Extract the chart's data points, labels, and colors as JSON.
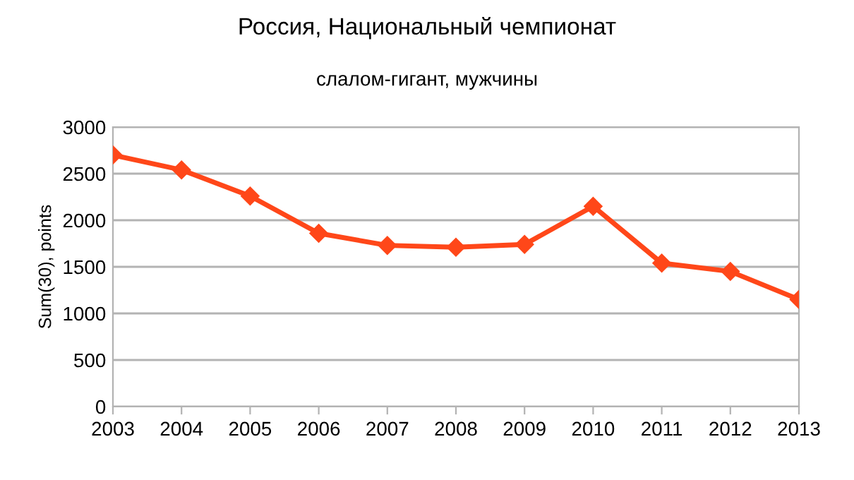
{
  "chart_data": {
    "type": "line",
    "title": "Россия, Национальный чемпионат",
    "subtitle": "слалом-гигант, мужчины",
    "ylabel": "Sum(30), points",
    "categories": [
      "2003",
      "2004",
      "2005",
      "2006",
      "2007",
      "2008",
      "2009",
      "2010",
      "2011",
      "2012",
      "2013"
    ],
    "series": [
      {
        "color": "#ff4719",
        "values": [
          2700,
          2540,
          2260,
          1860,
          1730,
          1710,
          1740,
          2150,
          1540,
          1450,
          1150
        ]
      }
    ],
    "ylim": [
      0,
      3000
    ],
    "yticks": [
      0,
      500,
      1000,
      1500,
      2000,
      2500,
      3000
    ],
    "grid": "y",
    "marker": "diamond",
    "line_style": "solid"
  }
}
